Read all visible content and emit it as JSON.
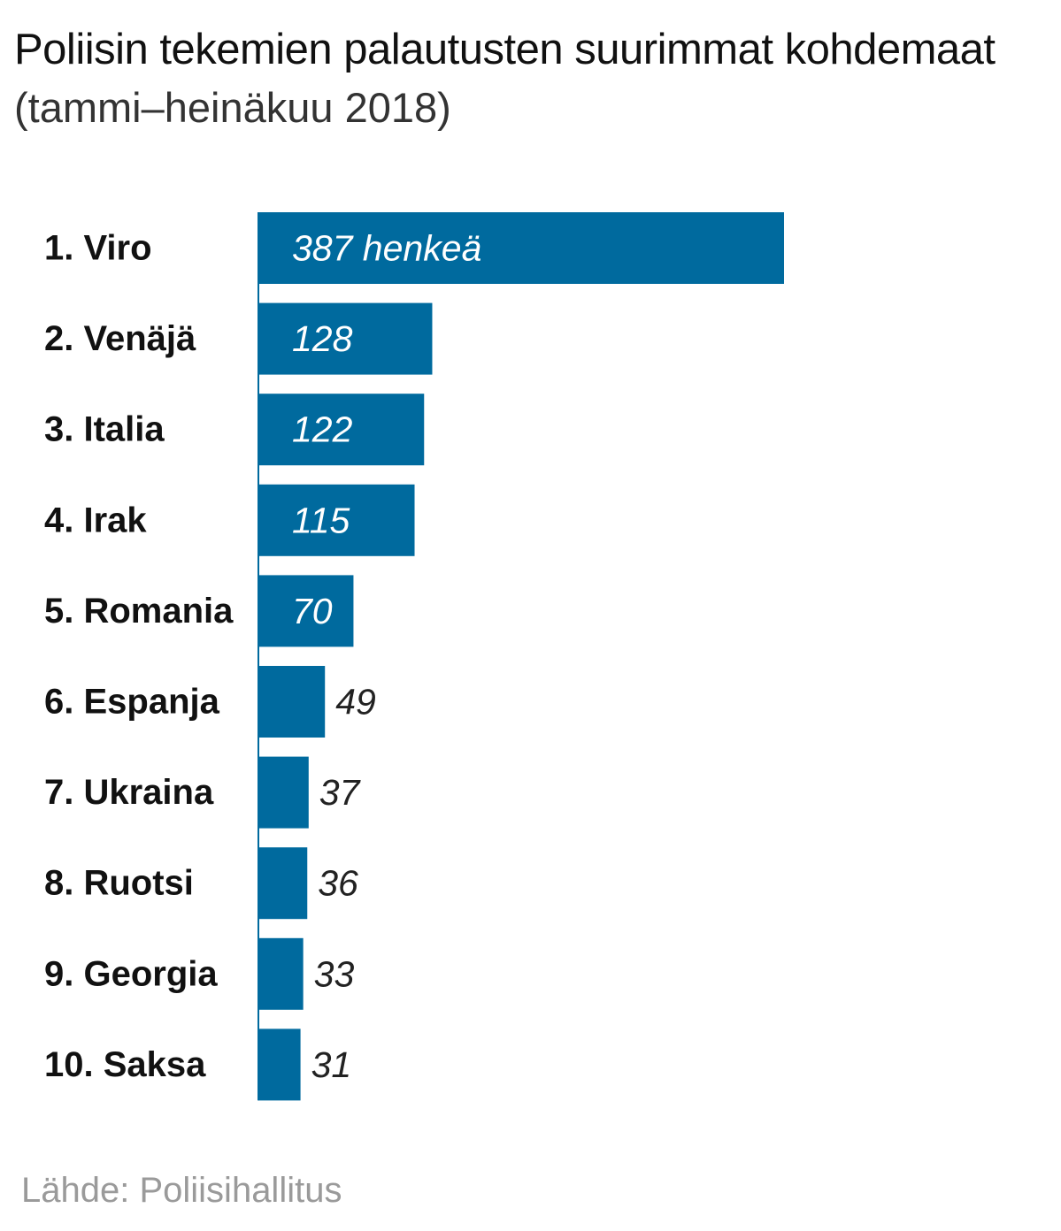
{
  "title": "Poliisin tekemien palautusten suurimmat kohdemaat",
  "subtitle": "(tammi–heinäkuu 2018)",
  "source": {
    "label": "Lähde:",
    "text": "Poliisihallitus"
  },
  "colors": {
    "bar": "#006a9e",
    "label_inside": "#ffffff",
    "label_outside": "#222222",
    "category_text": "#111111",
    "axis": "#006a9e"
  },
  "chart_data": {
    "type": "bar",
    "orientation": "horizontal",
    "title": "Poliisin tekemien palautusten suurimmat kohdemaat",
    "subtitle": "(tammi–heinäkuu 2018)",
    "categories": [
      "1. Viro",
      "2. Venäjä",
      "3. Italia",
      "4. Irak",
      "5. Romania",
      "6. Espanja",
      "7. Ukraina",
      "8. Ruotsi",
      "9. Georgia",
      "10. Saksa"
    ],
    "values": [
      387,
      128,
      122,
      115,
      70,
      49,
      37,
      36,
      33,
      31
    ],
    "value_labels": [
      "387 henkeä",
      "128",
      "122",
      "115",
      "70",
      "49",
      "37",
      "36",
      "33",
      "31"
    ],
    "xlim": [
      0,
      387
    ],
    "xlabel": "",
    "ylabel": "",
    "grid": false,
    "legend": "none"
  }
}
